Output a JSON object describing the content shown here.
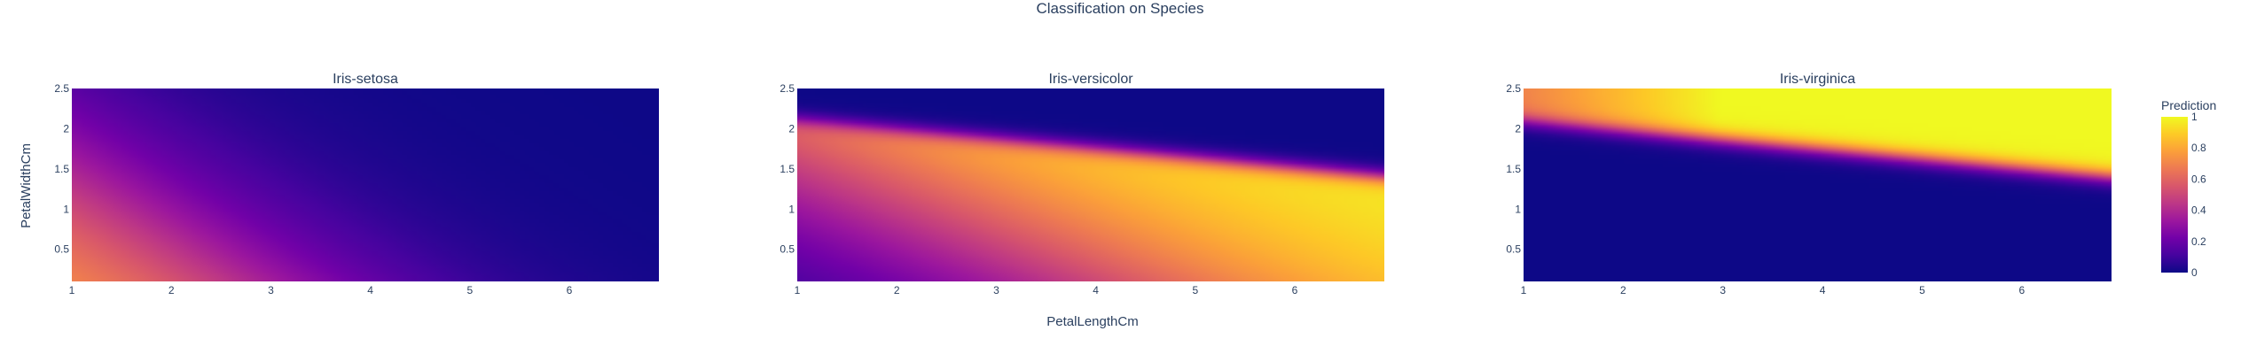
{
  "figure": {
    "title": "Classification on Species",
    "xlabel": "PetalLengthCm",
    "ylabel": "PetalWidthCm"
  },
  "colorbar": {
    "title": "Prediction",
    "ticks": [
      "0",
      "0.2",
      "0.4",
      "0.6",
      "0.8",
      "1"
    ],
    "colors": [
      "#0d0887",
      "#46039f",
      "#7201a8",
      "#9c179e",
      "#bd3786",
      "#d8576b",
      "#ed7953",
      "#fb9f3a",
      "#fdca26",
      "#f0f921"
    ]
  },
  "chart_data": [
    {
      "type": "heatmap",
      "title": "Iris-setosa",
      "xlabel": "PetalLengthCm",
      "ylabel": "PetalWidthCm",
      "xlim": [
        1,
        6.9
      ],
      "ylim": [
        0.1,
        2.5
      ],
      "x_ticks": [
        "1",
        "2",
        "3",
        "4",
        "5",
        "6"
      ],
      "y_ticks": [
        "0.5",
        "1",
        "1.5",
        "2",
        "2.5"
      ],
      "z_range": [
        0,
        1
      ],
      "z_model": {
        "kind": "logistic",
        "intercept": 2.5,
        "coef_x": -0.9,
        "coef_y": -1.2,
        "z_max": 0.85
      }
    },
    {
      "type": "heatmap",
      "title": "Iris-versicolor",
      "xlim": [
        1,
        6.9
      ],
      "ylim": [
        0.1,
        2.5
      ],
      "x_ticks": [
        "1",
        "2",
        "3",
        "4",
        "5",
        "6"
      ],
      "y_ticks": [
        "0.5",
        "1",
        "1.5",
        "2",
        "2.5"
      ],
      "z_range": [
        0,
        1
      ],
      "z_model": {
        "kind": "band",
        "boundary_at_x1": 2.1,
        "boundary_at_x6_9": 1.4,
        "edge_softness": 0.06,
        "intercept": -2.5,
        "coef_x": 0.6,
        "coef_y": 1.2
      }
    },
    {
      "type": "heatmap",
      "title": "Iris-virginica",
      "xlim": [
        1,
        6.9
      ],
      "ylim": [
        0.1,
        2.5
      ],
      "x_ticks": [
        "1",
        "2",
        "3",
        "4",
        "5",
        "6"
      ],
      "y_ticks": [
        "0.5",
        "1",
        "1.5",
        "2",
        "2.5"
      ],
      "z_range": [
        0,
        1
      ],
      "z_model": {
        "kind": "boundary",
        "boundary_at_x1": 2.1,
        "boundary_at_x6_9": 1.4,
        "edge_softness": 0.06,
        "left_level": 0.7
      }
    }
  ]
}
